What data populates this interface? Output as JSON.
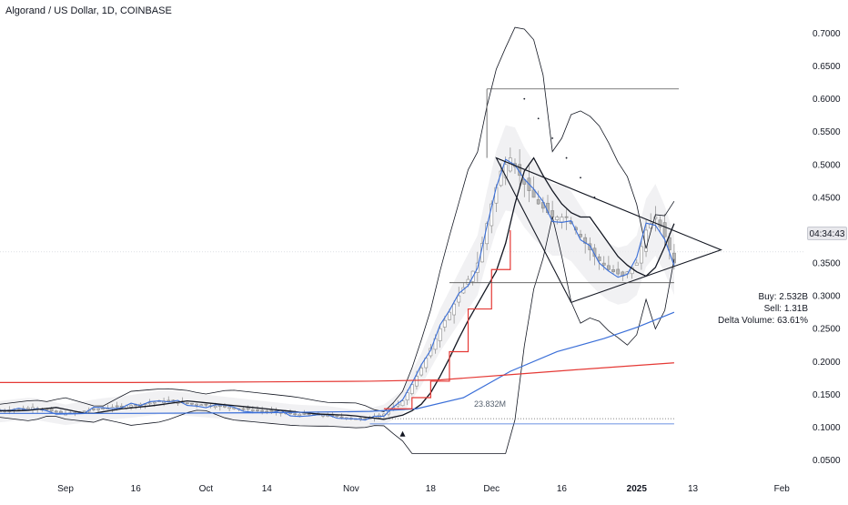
{
  "header": {
    "title": "Algorand / US Dollar, 1D, COINBASE"
  },
  "price_tag": "04:34:43",
  "stats": {
    "buy": "Buy: 2.532B",
    "sell": "Sell: 1.31B",
    "delta": "Delta Volume: 63.61%"
  },
  "volume_label": "23.832M",
  "colors": {
    "candle_up": "#9e9e9e",
    "candle_down": "#b5b5b5",
    "blue_line": "#3b6fd8",
    "red_line": "#e53935",
    "black_line": "#131722",
    "axis_text": "#131722"
  },
  "chart_data": {
    "type": "line",
    "title": "Algorand / US Dollar, 1D, COINBASE",
    "xlabel": "",
    "ylabel": "",
    "ylim": [
      0.03,
      0.72
    ],
    "xlim": [
      "2024-08-18",
      "2025-02-06"
    ],
    "y_ticks": [
      "0.7000",
      "0.6500",
      "0.6000",
      "0.5500",
      "0.5000",
      "0.4500",
      "0.4000",
      "0.3500",
      "0.3000",
      "0.2500",
      "0.2000",
      "0.1500",
      "0.1000",
      "0.0500"
    ],
    "x_ticks": [
      {
        "label": "Sep",
        "date": "2024-09-01"
      },
      {
        "label": "16",
        "date": "2024-09-16"
      },
      {
        "label": "Oct",
        "date": "2024-10-01"
      },
      {
        "label": "14",
        "date": "2024-10-14"
      },
      {
        "label": "Nov",
        "date": "2024-11-01"
      },
      {
        "label": "18",
        "date": "2024-11-18"
      },
      {
        "label": "Dec",
        "date": "2024-12-01"
      },
      {
        "label": "16",
        "date": "2024-12-16"
      },
      {
        "label": "2025",
        "date": "2025-01-01"
      },
      {
        "label": "13",
        "date": "2025-01-13"
      },
      {
        "label": "Feb",
        "date": "2025-02-01"
      }
    ],
    "grid": false,
    "series": [
      {
        "kind": "price",
        "x": [
          "2024-08-18",
          "2024-08-25",
          "2024-09-01",
          "2024-09-08",
          "2024-09-15",
          "2024-09-22",
          "2024-09-29",
          "2024-10-06",
          "2024-10-13",
          "2024-10-20",
          "2024-10-27",
          "2024-11-03",
          "2024-11-08",
          "2024-11-12",
          "2024-11-16",
          "2024-11-20",
          "2024-11-24",
          "2024-11-28",
          "2024-12-01",
          "2024-12-03",
          "2024-12-05",
          "2024-12-08",
          "2024-12-11",
          "2024-12-14",
          "2024-12-17",
          "2024-12-20",
          "2024-12-23",
          "2024-12-26",
          "2024-12-29",
          "2025-01-01",
          "2025-01-03",
          "2025-01-05",
          "2025-01-07",
          "2025-01-09"
        ],
        "values": [
          0.125,
          0.13,
          0.12,
          0.128,
          0.133,
          0.14,
          0.135,
          0.13,
          0.125,
          0.12,
          0.118,
          0.112,
          0.12,
          0.14,
          0.19,
          0.25,
          0.3,
          0.35,
          0.44,
          0.49,
          0.51,
          0.47,
          0.44,
          0.42,
          0.42,
          0.39,
          0.36,
          0.34,
          0.33,
          0.35,
          0.4,
          0.42,
          0.39,
          0.35
        ]
      },
      {
        "kind": "ma-blue",
        "x": [
          "2024-08-18",
          "2024-09-15",
          "2024-10-13",
          "2024-11-05",
          "2024-11-15",
          "2024-11-25",
          "2024-12-05",
          "2024-12-15",
          "2024-12-25",
          "2025-01-01",
          "2025-01-09"
        ],
        "values": [
          0.121,
          0.121,
          0.122,
          0.124,
          0.128,
          0.145,
          0.185,
          0.215,
          0.235,
          0.252,
          0.275
        ]
      },
      {
        "kind": "ma-red",
        "x": [
          "2024-08-18",
          "2024-09-15",
          "2024-10-13",
          "2024-11-05",
          "2024-11-20",
          "2024-12-05",
          "2024-12-20",
          "2025-01-01",
          "2025-01-09"
        ],
        "values": [
          0.168,
          0.168,
          0.169,
          0.17,
          0.172,
          0.18,
          0.188,
          0.194,
          0.198
        ]
      }
    ],
    "annotations": [
      {
        "kind": "triangle",
        "points": [
          [
            "2024-12-02",
            "0.51"
          ],
          [
            "2025-01-19",
            "0.37"
          ],
          [
            "2024-12-18",
            "0.29"
          ]
        ]
      },
      {
        "kind": "hline",
        "y": 0.615,
        "from": "2024-11-30",
        "to": "2025-01-10"
      },
      {
        "kind": "hline",
        "y": 0.32,
        "from": "2024-11-22",
        "to": "2025-01-09"
      },
      {
        "kind": "hline",
        "y": 0.113,
        "from": "2024-11-08",
        "to": "2025-01-09"
      },
      {
        "kind": "hline",
        "y": 0.105,
        "from": "2024-11-05",
        "to": "2025-01-09"
      }
    ]
  }
}
